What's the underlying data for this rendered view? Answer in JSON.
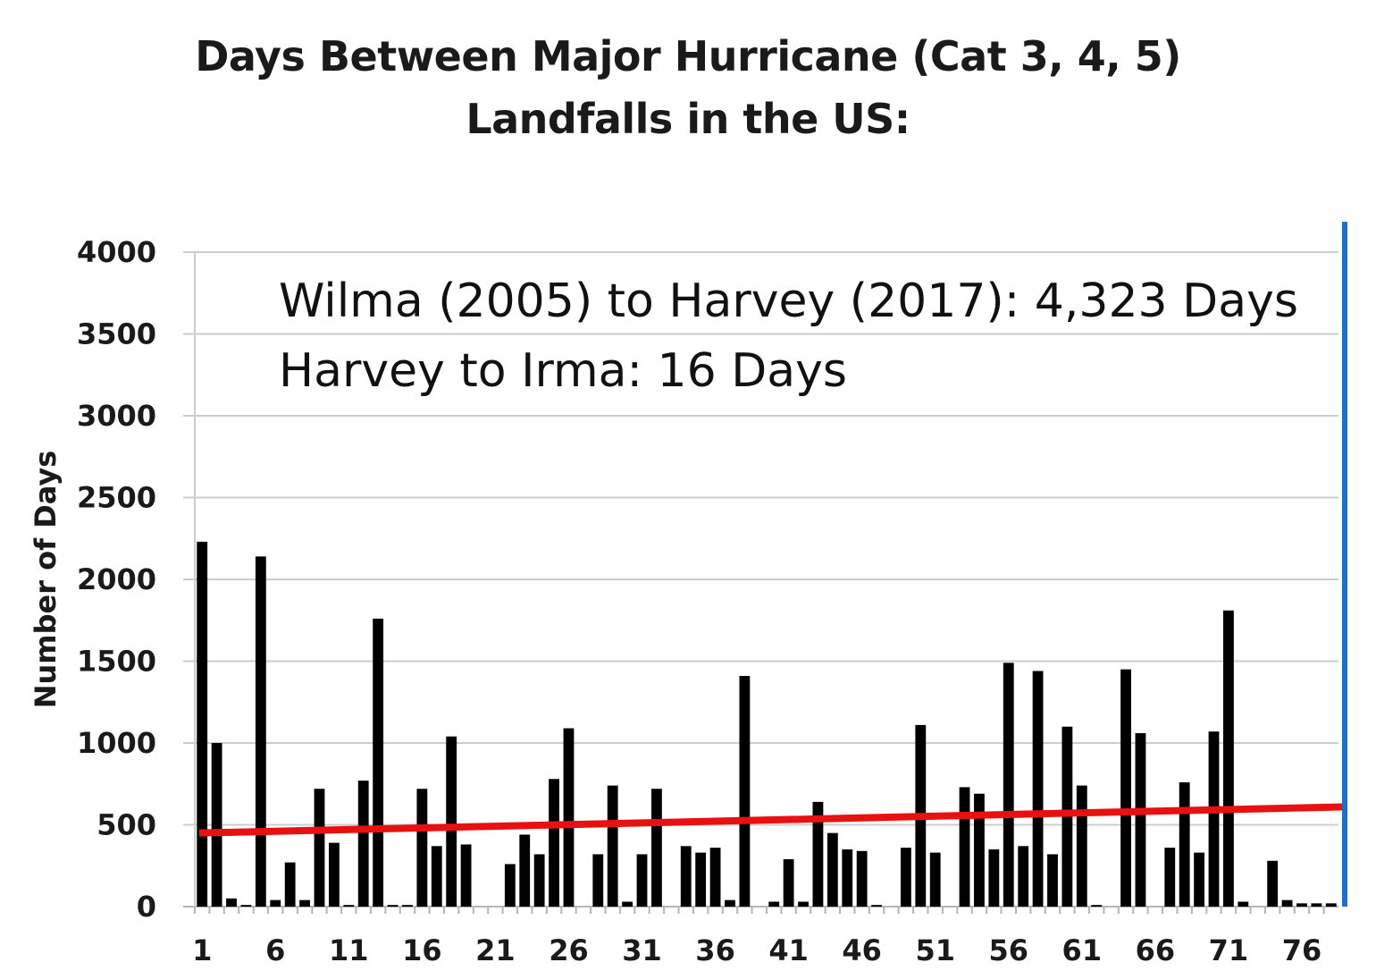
{
  "chart_data": {
    "type": "bar",
    "title_line1": "Days Between Major Hurricane (Cat 3, 4, 5)",
    "title_line2": "Landfalls in the US:",
    "xlabel": "",
    "ylabel": "Number of Days",
    "ylim": [
      0,
      4000
    ],
    "yticks": [
      0,
      500,
      1000,
      1500,
      2000,
      2500,
      3000,
      3500,
      4000
    ],
    "xtick_labels": [
      "1",
      "6",
      "11",
      "16",
      "21",
      "26",
      "31",
      "36",
      "41",
      "46",
      "51",
      "56",
      "61",
      "66",
      "71",
      "76"
    ],
    "grid": true,
    "categories": [
      "1",
      "2",
      "3",
      "4",
      "5",
      "6",
      "7",
      "8",
      "9",
      "10",
      "11",
      "12",
      "13",
      "14",
      "15",
      "16",
      "17",
      "18",
      "19",
      "20",
      "21",
      "22",
      "23",
      "24",
      "25",
      "26",
      "27",
      "28",
      "29",
      "30",
      "31",
      "32",
      "33",
      "34",
      "35",
      "36",
      "37",
      "38",
      "39",
      "40",
      "41",
      "42",
      "43",
      "44",
      "45",
      "46",
      "47",
      "48",
      "49",
      "50",
      "51",
      "52",
      "53",
      "54",
      "55",
      "56",
      "57",
      "58",
      "59",
      "60",
      "61",
      "62",
      "63",
      "64",
      "65",
      "66",
      "67",
      "68",
      "69",
      "70",
      "71",
      "72",
      "73",
      "74",
      "75",
      "76",
      "77",
      "78"
    ],
    "values": [
      2230,
      1000,
      50,
      10,
      2140,
      40,
      270,
      40,
      720,
      390,
      10,
      770,
      1760,
      10,
      10,
      720,
      370,
      1040,
      380,
      0,
      0,
      260,
      440,
      320,
      780,
      1090,
      0,
      320,
      740,
      30,
      320,
      720,
      0,
      370,
      330,
      360,
      40,
      1410,
      0,
      30,
      290,
      30,
      640,
      450,
      350,
      340,
      10,
      0,
      360,
      1110,
      330,
      0,
      730,
      690,
      350,
      1490,
      370,
      1440,
      320,
      1100,
      740,
      10,
      0,
      1450,
      1060,
      0,
      360,
      760,
      330,
      1070,
      1810,
      30,
      0,
      280,
      40,
      20,
      20,
      20
    ],
    "trendline": {
      "start": 450,
      "end": 610,
      "color": "#e81010"
    },
    "annotations": [
      "Wilma (2005) to Harvey (2017): 4,323 Days",
      "Harvey to Irma: 16 Days"
    ],
    "marker_line_color": "#1f6fc4",
    "bar_color": "#000000",
    "grid_color": "#cccccc"
  }
}
